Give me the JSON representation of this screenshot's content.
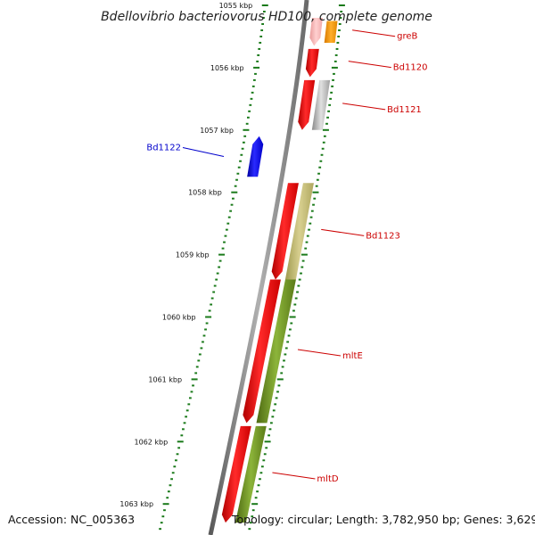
{
  "title": "Bdellovibrio bacteriovorus HD100, complete genome",
  "footer": {
    "accession": "Accession: NC_005363",
    "topology": "Topology: circular; Length: 3,782,950 bp; Genes: 3,629"
  },
  "colors": {
    "forward_gene": "#ff0000",
    "reverse_gene": "#0000ff",
    "label_forward": "#cc0000",
    "label_reverse": "#0000cc",
    "tick": "#1a7a1a",
    "backbone": "#7f7f7f",
    "cog_orange": "#ff9900",
    "cog_grey": "#c0c0c0",
    "cog_khaki": "#bdb76b",
    "cog_olive": "#6b8e23",
    "gene_pink": "#ffb6b6"
  },
  "map_data": {
    "unit": "kbp",
    "ticks": [
      {
        "pos": 1055,
        "label": "1055 kbp"
      },
      {
        "pos": 1056,
        "label": "1056 kbp"
      },
      {
        "pos": 1057,
        "label": "1057 kbp"
      },
      {
        "pos": 1058,
        "label": "1058 kbp"
      },
      {
        "pos": 1059,
        "label": "1059 kbp"
      },
      {
        "pos": 1060,
        "label": "1060 kbp"
      },
      {
        "pos": 1061,
        "label": "1061 kbp"
      },
      {
        "pos": 1062,
        "label": "1062 kbp"
      },
      {
        "pos": 1063,
        "label": "1063 kbp"
      }
    ],
    "genes": [
      {
        "name": "greB",
        "strand": "+",
        "start": 1055.2,
        "end": 1055.65,
        "ring": "forward",
        "color": "pink"
      },
      {
        "name": "greB-cog",
        "strand": "+",
        "start": 1055.25,
        "end": 1055.6,
        "ring": "cog",
        "color": "orange"
      },
      {
        "name": "Bd1120",
        "strand": "+",
        "start": 1055.7,
        "end": 1056.15,
        "ring": "forward",
        "color": "red"
      },
      {
        "name": "Bd1121",
        "strand": "+",
        "start": 1056.2,
        "end": 1057.0,
        "ring": "forward",
        "color": "red"
      },
      {
        "name": "Bd1121-cog",
        "strand": "+",
        "start": 1056.2,
        "end": 1057.0,
        "ring": "cog",
        "color": "grey"
      },
      {
        "name": "Bd1122",
        "strand": "-",
        "start": 1057.1,
        "end": 1057.75,
        "ring": "reverse",
        "color": "blue"
      },
      {
        "name": "Bd1123",
        "strand": "+",
        "start": 1057.85,
        "end": 1059.4,
        "ring": "forward",
        "color": "red"
      },
      {
        "name": "Bd1123-cog",
        "strand": "+",
        "start": 1057.85,
        "end": 1059.4,
        "ring": "cog",
        "color": "khaki"
      },
      {
        "name": "mltE",
        "strand": "+",
        "start": 1059.4,
        "end": 1061.7,
        "ring": "forward",
        "color": "red"
      },
      {
        "name": "mltE-cog",
        "strand": "+",
        "start": 1059.4,
        "end": 1061.7,
        "ring": "cog",
        "color": "olive"
      },
      {
        "name": "mltD",
        "strand": "+",
        "start": 1061.75,
        "end": 1063.3,
        "ring": "forward",
        "color": "red"
      },
      {
        "name": "mltD-cog",
        "strand": "+",
        "start": 1061.75,
        "end": 1063.3,
        "ring": "cog",
        "color": "olive"
      }
    ],
    "labels": [
      {
        "text": "greB",
        "gene": "greB",
        "side": "right"
      },
      {
        "text": "Bd1120",
        "gene": "Bd1120",
        "side": "right"
      },
      {
        "text": "Bd1121",
        "gene": "Bd1121",
        "side": "right"
      },
      {
        "text": "Bd1122",
        "gene": "Bd1122",
        "side": "left"
      },
      {
        "text": "Bd1123",
        "gene": "Bd1123",
        "side": "right"
      },
      {
        "text": "mltE",
        "gene": "mltE",
        "side": "right"
      },
      {
        "text": "mltD",
        "gene": "mltD",
        "side": "right"
      }
    ]
  }
}
